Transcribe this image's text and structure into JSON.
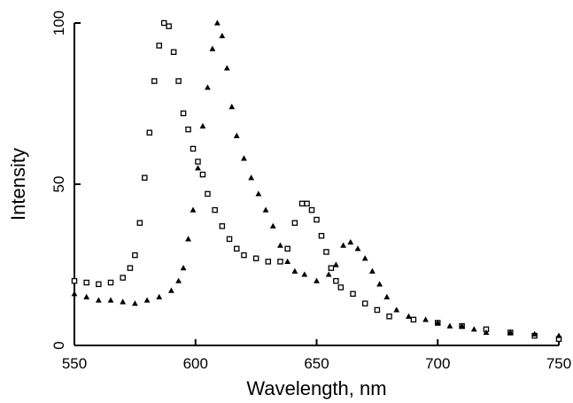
{
  "chart_data": {
    "type": "scatter",
    "title": "",
    "xlabel": "Wavelength, nm",
    "ylabel": "Intensity",
    "xlim": [
      550,
      750
    ],
    "ylim": [
      0,
      100
    ],
    "x_ticks": [
      "550",
      "600",
      "650",
      "700",
      "750"
    ],
    "y_ticks": [
      "0",
      "50",
      "100"
    ],
    "grid": false,
    "legend": "none",
    "series": [
      {
        "marker": "open-square",
        "color": "#000000",
        "points": [
          [
            550,
            20
          ],
          [
            555,
            19.5
          ],
          [
            560,
            19
          ],
          [
            565,
            19.5
          ],
          [
            570,
            21
          ],
          [
            573,
            24
          ],
          [
            575,
            28
          ],
          [
            577,
            38
          ],
          [
            579,
            52
          ],
          [
            581,
            66
          ],
          [
            583,
            82
          ],
          [
            585,
            93
          ],
          [
            587,
            100
          ],
          [
            589,
            99
          ],
          [
            591,
            91
          ],
          [
            593,
            82
          ],
          [
            595,
            72
          ],
          [
            597,
            67
          ],
          [
            599,
            61
          ],
          [
            601,
            57
          ],
          [
            603,
            53
          ],
          [
            605,
            47
          ],
          [
            608,
            42
          ],
          [
            611,
            37
          ],
          [
            614,
            33
          ],
          [
            617,
            30
          ],
          [
            620,
            28
          ],
          [
            625,
            27
          ],
          [
            630,
            26
          ],
          [
            635,
            26
          ],
          [
            638,
            30
          ],
          [
            641,
            38
          ],
          [
            644,
            44
          ],
          [
            646,
            44
          ],
          [
            648,
            42
          ],
          [
            650,
            39
          ],
          [
            652,
            34
          ],
          [
            654,
            29
          ],
          [
            656,
            24
          ],
          [
            658,
            20
          ],
          [
            660,
            18
          ],
          [
            665,
            16
          ],
          [
            670,
            13
          ],
          [
            675,
            11
          ],
          [
            680,
            9
          ],
          [
            690,
            8
          ],
          [
            700,
            7
          ],
          [
            710,
            6
          ],
          [
            720,
            5
          ],
          [
            730,
            4
          ],
          [
            740,
            3
          ],
          [
            750,
            2
          ]
        ]
      },
      {
        "marker": "filled-triangle",
        "color": "#000000",
        "points": [
          [
            550,
            16
          ],
          [
            555,
            15
          ],
          [
            560,
            14
          ],
          [
            565,
            14
          ],
          [
            570,
            13.5
          ],
          [
            575,
            13
          ],
          [
            580,
            14
          ],
          [
            585,
            15
          ],
          [
            590,
            17
          ],
          [
            593,
            20
          ],
          [
            595,
            24
          ],
          [
            597,
            33
          ],
          [
            599,
            42
          ],
          [
            601,
            55
          ],
          [
            603,
            68
          ],
          [
            605,
            80
          ],
          [
            607,
            92
          ],
          [
            609,
            100
          ],
          [
            611,
            96
          ],
          [
            613,
            86
          ],
          [
            615,
            74
          ],
          [
            617,
            65
          ],
          [
            620,
            58
          ],
          [
            623,
            52
          ],
          [
            626,
            47
          ],
          [
            629,
            42
          ],
          [
            632,
            37
          ],
          [
            635,
            31
          ],
          [
            638,
            26
          ],
          [
            641,
            23
          ],
          [
            645,
            22
          ],
          [
            650,
            20
          ],
          [
            655,
            22
          ],
          [
            658,
            25
          ],
          [
            661,
            31
          ],
          [
            664,
            32
          ],
          [
            667,
            30
          ],
          [
            670,
            27
          ],
          [
            673,
            23
          ],
          [
            676,
            19
          ],
          [
            679,
            15
          ],
          [
            683,
            11
          ],
          [
            688,
            9
          ],
          [
            695,
            8
          ],
          [
            700,
            7
          ],
          [
            705,
            6
          ],
          [
            710,
            6
          ],
          [
            715,
            5
          ],
          [
            720,
            4
          ],
          [
            730,
            4
          ],
          [
            740,
            3.5
          ],
          [
            750,
            3
          ]
        ]
      }
    ]
  }
}
